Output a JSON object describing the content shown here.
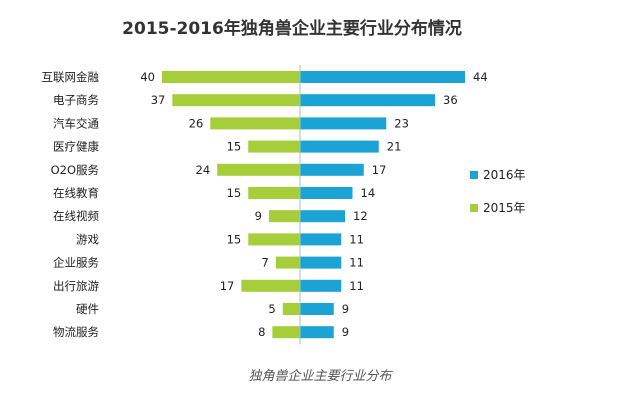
{
  "chart_data": {
    "type": "bar",
    "orientation": "horizontal-butterfly",
    "title": "2015-2016年独角兽企业主要行业分布情况",
    "caption": "独角兽企业主要行业分布",
    "categories": [
      "互联网金融",
      "电子商务",
      "汽车交通",
      "医疗健康",
      "O2O服务",
      "在线教育",
      "在线视频",
      "游戏",
      "企业服务",
      "出行旅游",
      "硬件",
      "物流服务"
    ],
    "series": [
      {
        "name": "2016年",
        "side": "right",
        "color": "#1ba3d6",
        "values": [
          44,
          36,
          23,
          21,
          17,
          14,
          12,
          11,
          11,
          11,
          9,
          9
        ]
      },
      {
        "name": "2015年",
        "side": "left",
        "color": "#a6cd3a",
        "values": [
          40,
          37,
          26,
          15,
          24,
          15,
          9,
          15,
          7,
          17,
          5,
          8
        ]
      }
    ],
    "legend_position": "right",
    "grid": false,
    "center_line_color": "#9ac9c4"
  }
}
